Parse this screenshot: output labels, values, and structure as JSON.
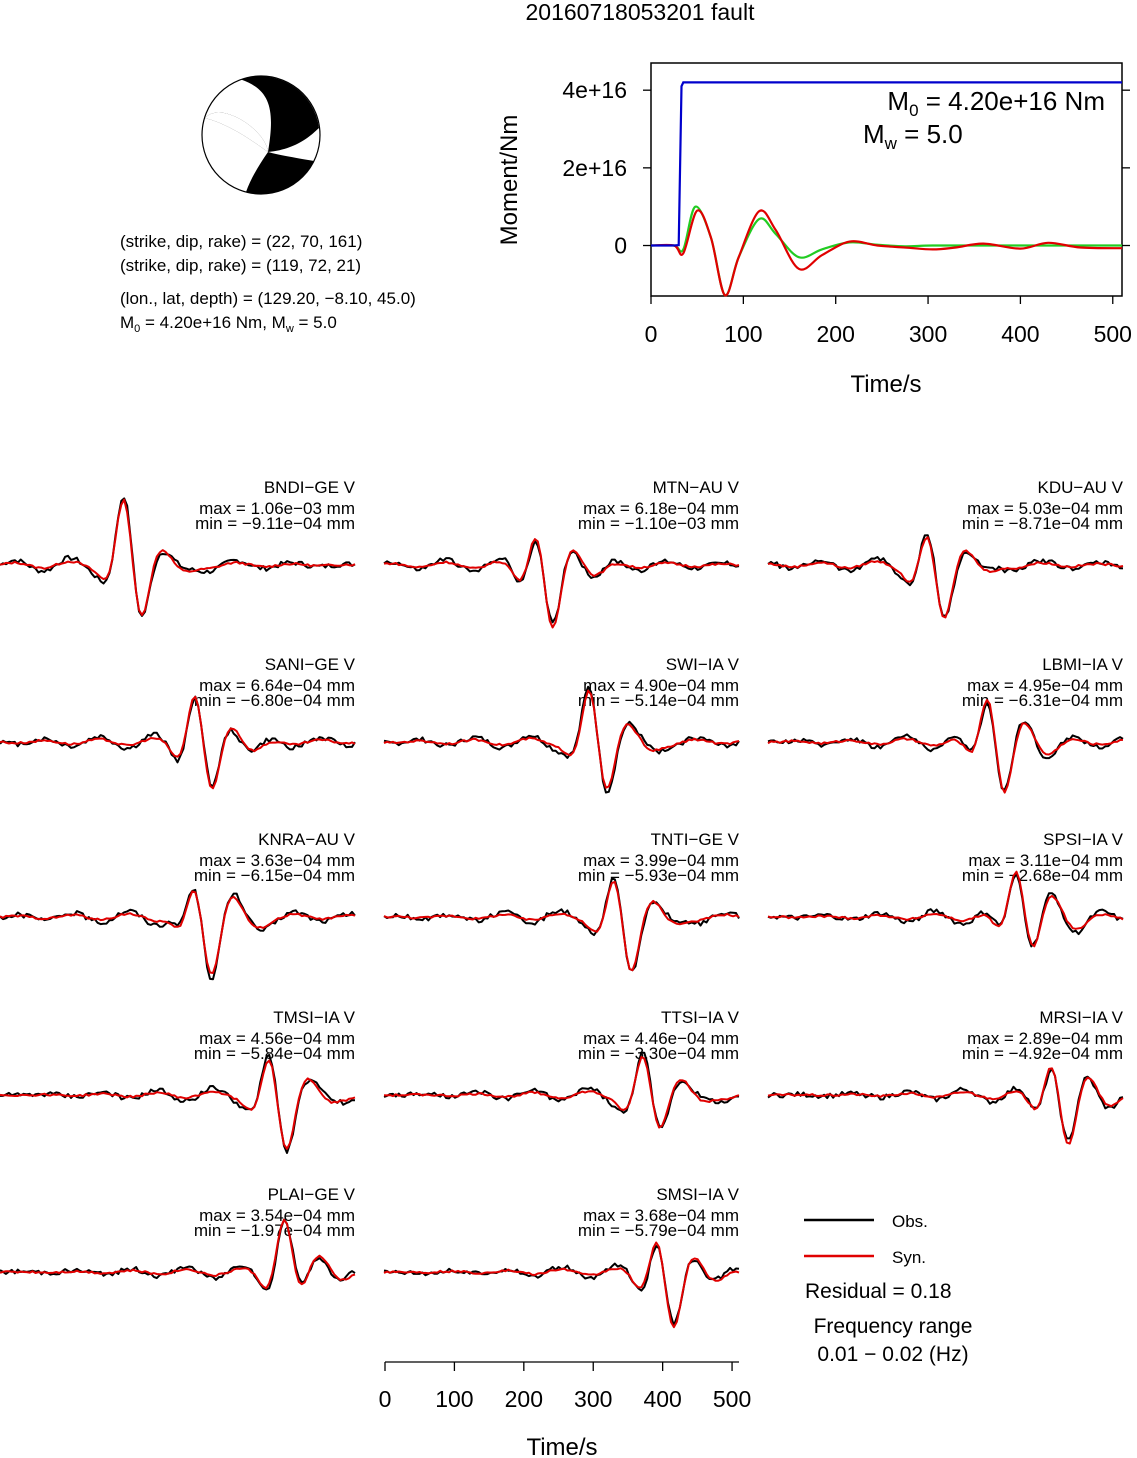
{
  "figure_title": "20160718053201 fault",
  "mechanism": {
    "planes": [
      "(strike, dip, rake) = (22, 70, 161)",
      "(strike, dip, rake) = (119, 72, 21)"
    ],
    "location": "(lon., lat, depth) = (129.20, −8.10, 45.0)",
    "moment_line": {
      "m0_prefix": "M",
      "m0_sub": "0",
      "m0_value": " = 4.20e+16 Nm, M",
      "mw_sub": "w",
      "mw_value": " = 5.0"
    }
  },
  "stf": {
    "ylabel": "Moment/Nm",
    "xlabel": "Time/s",
    "xlim": [
      0,
      510
    ],
    "ylim": [
      -1.3e+16,
      4.7e+16
    ],
    "x_ticks": [
      0,
      100,
      200,
      300,
      400,
      500
    ],
    "x_tick_labels": [
      "0",
      "100",
      "200",
      "300",
      "400",
      "500"
    ],
    "y_ticks": [
      0,
      2e+16,
      4e+16
    ],
    "y_tick_labels": [
      "0",
      "2e+16",
      "4e+16"
    ],
    "annotation_m0": {
      "prefix": "M",
      "sub": "0",
      "value": " = 4.20e+16 Nm"
    },
    "annotation_mw": {
      "prefix": "M",
      "sub": "w",
      "value": " = 5.0"
    },
    "colors": {
      "moment": "#0000cc",
      "obs_like": "#e00000",
      "syn_like": "#22cc22"
    }
  },
  "stations": [
    {
      "name": "BNDI−GE V",
      "max": "max = 1.06e−03 mm",
      "min": "min = −9.11e−04 mm"
    },
    {
      "name": "MTN−AU V",
      "max": "max = 6.18e−04 mm",
      "min": "min = −1.10e−03 mm"
    },
    {
      "name": "KDU−AU V",
      "max": "max = 5.03e−04 mm",
      "min": "min = −8.71e−04 mm"
    },
    {
      "name": "SANI−GE V",
      "max": "max = 6.64e−04 mm",
      "min": "min = −6.80e−04 mm"
    },
    {
      "name": "SWI−IA V",
      "max": "max = 4.90e−04 mm",
      "min": "min = −5.14e−04 mm"
    },
    {
      "name": "LBMI−IA V",
      "max": "max = 4.95e−04 mm",
      "min": "min = −6.31e−04 mm"
    },
    {
      "name": "KNRA−AU V",
      "max": "max = 3.63e−04 mm",
      "min": "min = −6.15e−04 mm"
    },
    {
      "name": "TNTI−GE V",
      "max": "max = 3.99e−04 mm",
      "min": "min = −5.93e−04 mm"
    },
    {
      "name": "SPSI−IA V",
      "max": "max = 3.11e−04 mm",
      "min": "min = −2.68e−04 mm"
    },
    {
      "name": "TMSI−IA V",
      "max": "max = 4.56e−04 mm",
      "min": "min = −5.84e−04 mm"
    },
    {
      "name": "TTSI−IA V",
      "max": "max = 4.46e−04 mm",
      "min": "min = −3.30e−04 mm"
    },
    {
      "name": "MRSI−IA V",
      "max": "max = 2.89e−04 mm",
      "min": "min = −4.92e−04 mm"
    },
    {
      "name": "PLAI−GE V",
      "max": "max = 3.54e−04 mm",
      "min": "min = −1.97e−04 mm"
    },
    {
      "name": "SMSI−IA V",
      "max": "max = 3.68e−04 mm",
      "min": "min = −5.79e−04 mm"
    }
  ],
  "waveform_axis": {
    "xlabel": "Time/s",
    "x_ticks": [
      0,
      100,
      200,
      300,
      400,
      500
    ],
    "x_tick_labels": [
      "0",
      "100",
      "200",
      "300",
      "400",
      "500"
    ],
    "xlim": [
      0,
      510
    ]
  },
  "legend": {
    "obs_label": "Obs.",
    "syn_label": "Syn.",
    "obs_color": "#000000",
    "syn_color": "#e00000",
    "residual": "Residual = 0.18",
    "freq_title": "Frequency range",
    "freq_value": "0.01 − 0.02 (Hz)"
  },
  "chart_data": [
    {
      "type": "line",
      "title": "",
      "xlabel": "Time/s",
      "ylabel": "Moment/Nm",
      "xlim": [
        0,
        510
      ],
      "ylim": [
        -1.3e+16,
        4.7e+16
      ],
      "grid": false,
      "series": [
        {
          "values_note": "moment",
          "x": [
            0,
            25,
            30,
            33,
            35,
            510
          ],
          "y": [
            0,
            0,
            100000000000000.0,
            4.1e+16,
            4.2e+16,
            4.2e+16
          ]
        },
        {
          "values_note": "red",
          "x": [
            0,
            25,
            35,
            50,
            65,
            80,
            95,
            117,
            135,
            160,
            185,
            215,
            245,
            275,
            305,
            330,
            360,
            400,
            430,
            465,
            510
          ],
          "y": [
            0,
            0,
            -2000000000000000.0,
            9000000000000000.0,
            2000000000000000.0,
            -1.28e+16,
            -3000000000000000.0,
            8800000000000000.0,
            4000000000000000.0,
            -6000000000000000.0,
            -2500000000000000.0,
            1000000000000000.0,
            0.0,
            -500000000000000.0,
            -1000000000000000.0,
            -500000000000000.0,
            500000000000000.0,
            -800000000000000.0,
            700000000000000.0,
            -500000000000000.0,
            -700000000000000.0
          ]
        },
        {
          "values_note": "green",
          "x": [
            0,
            25,
            35,
            48,
            65,
            80,
            95,
            117,
            135,
            160,
            185,
            215,
            245,
            275,
            305,
            360,
            430,
            510
          ],
          "y": [
            0,
            0,
            -1000000000000000.0,
            1e+16,
            2000000000000000.0,
            -1.28e+16,
            -3000000000000000.0,
            6800000000000000.0,
            3000000000000000.0,
            -3000000000000000.0,
            -1000000000000000.0,
            800000000000000.0,
            200000000000000.0,
            -200000000000000.0,
            0.0,
            0.0,
            0.0,
            0.0
          ]
        }
      ]
    }
  ]
}
